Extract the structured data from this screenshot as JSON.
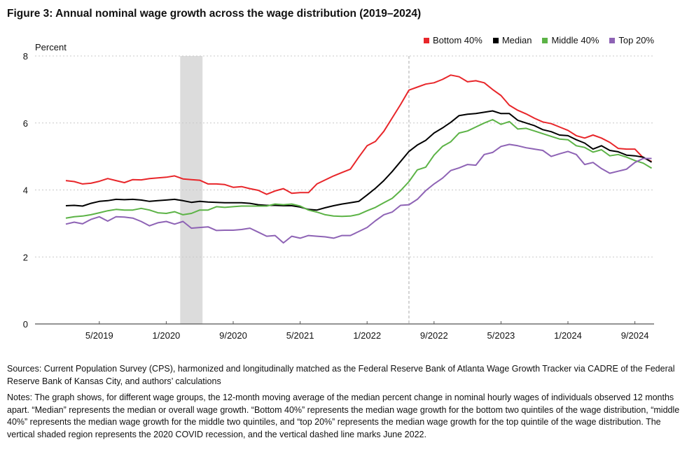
{
  "chart_data": {
    "type": "line",
    "title": "Figure 3: Annual nominal wage growth across the wage distribution (2019–2024)",
    "ylabel": "Percent",
    "xlabel": "",
    "ylim": [
      0,
      8
    ],
    "yticks": [
      0,
      2,
      4,
      6,
      8
    ],
    "grid": "horizontal dotted",
    "legend_position": "top-right",
    "x_start": "1/2019",
    "x_end": "11/2024",
    "x_frequency": "monthly",
    "xticks": [
      {
        "label": "5/2019",
        "index": 4
      },
      {
        "label": "1/2020",
        "index": 12
      },
      {
        "label": "9/2020",
        "index": 20
      },
      {
        "label": "5/2021",
        "index": 28
      },
      {
        "label": "1/2022",
        "index": 36
      },
      {
        "label": "9/2022",
        "index": 44
      },
      {
        "label": "5/2023",
        "index": 52
      },
      {
        "label": "1/2024",
        "index": 60
      },
      {
        "label": "9/2024",
        "index": 68
      }
    ],
    "shaded_region": {
      "label": "2020 COVID recession",
      "start_index": 14,
      "end_index": 16
    },
    "dashed_line": {
      "label": "June 2022",
      "index": 41
    },
    "series": [
      {
        "name": "Bottom 40%",
        "color": "#e8262a",
        "values": [
          4.28,
          4.25,
          4.18,
          4.2,
          4.26,
          4.34,
          4.28,
          4.22,
          4.31,
          4.3,
          4.34,
          4.36,
          4.38,
          4.42,
          4.33,
          4.31,
          4.29,
          4.18,
          4.18,
          4.16,
          4.08,
          4.1,
          4.04,
          3.99,
          3.87,
          3.97,
          4.04,
          3.9,
          3.92,
          3.92,
          4.18,
          4.3,
          4.42,
          4.52,
          4.62,
          4.98,
          5.32,
          5.45,
          5.75,
          6.15,
          6.55,
          6.98,
          7.07,
          7.16,
          7.2,
          7.3,
          7.43,
          7.38,
          7.23,
          7.26,
          7.2,
          7.0,
          6.82,
          6.53,
          6.38,
          6.27,
          6.14,
          6.03,
          5.98,
          5.88,
          5.78,
          5.62,
          5.55,
          5.64,
          5.55,
          5.42,
          5.24,
          5.22,
          5.22,
          4.96,
          4.85
        ]
      },
      {
        "name": "Median",
        "color": "#000000",
        "values": [
          3.53,
          3.54,
          3.52,
          3.6,
          3.66,
          3.68,
          3.72,
          3.71,
          3.72,
          3.7,
          3.66,
          3.68,
          3.7,
          3.72,
          3.68,
          3.63,
          3.66,
          3.64,
          3.63,
          3.62,
          3.62,
          3.62,
          3.6,
          3.56,
          3.54,
          3.54,
          3.53,
          3.53,
          3.49,
          3.42,
          3.4,
          3.47,
          3.53,
          3.58,
          3.62,
          3.66,
          3.85,
          4.05,
          4.28,
          4.55,
          4.85,
          5.15,
          5.34,
          5.48,
          5.7,
          5.85,
          6.02,
          6.22,
          6.26,
          6.28,
          6.32,
          6.36,
          6.28,
          6.28,
          6.08,
          6.0,
          5.92,
          5.8,
          5.74,
          5.64,
          5.62,
          5.5,
          5.4,
          5.22,
          5.32,
          5.18,
          5.14,
          5.04,
          5.02,
          4.98,
          4.83
        ]
      },
      {
        "name": "Middle 40%",
        "color": "#5cb346",
        "values": [
          3.16,
          3.2,
          3.22,
          3.26,
          3.32,
          3.38,
          3.42,
          3.4,
          3.4,
          3.45,
          3.4,
          3.32,
          3.3,
          3.35,
          3.26,
          3.3,
          3.4,
          3.4,
          3.5,
          3.48,
          3.5,
          3.52,
          3.52,
          3.52,
          3.52,
          3.58,
          3.56,
          3.58,
          3.52,
          3.4,
          3.34,
          3.26,
          3.22,
          3.21,
          3.22,
          3.27,
          3.38,
          3.48,
          3.62,
          3.75,
          3.98,
          4.25,
          4.6,
          4.68,
          5.04,
          5.3,
          5.44,
          5.7,
          5.76,
          5.88,
          6.0,
          6.1,
          5.96,
          6.04,
          5.82,
          5.84,
          5.76,
          5.68,
          5.6,
          5.52,
          5.5,
          5.32,
          5.27,
          5.13,
          5.2,
          5.02,
          5.06,
          4.98,
          4.88,
          4.8,
          4.65
        ]
      },
      {
        "name": "Top 20%",
        "color": "#8e63b5",
        "values": [
          2.98,
          3.04,
          2.99,
          3.12,
          3.2,
          3.07,
          3.2,
          3.19,
          3.16,
          3.06,
          2.93,
          3.02,
          3.06,
          2.98,
          3.06,
          2.86,
          2.88,
          2.9,
          2.79,
          2.8,
          2.8,
          2.82,
          2.86,
          2.74,
          2.62,
          2.64,
          2.42,
          2.62,
          2.56,
          2.64,
          2.62,
          2.6,
          2.56,
          2.64,
          2.64,
          2.76,
          2.88,
          3.08,
          3.26,
          3.34,
          3.54,
          3.56,
          3.72,
          3.98,
          4.18,
          4.35,
          4.58,
          4.66,
          4.76,
          4.74,
          5.06,
          5.12,
          5.3,
          5.36,
          5.32,
          5.26,
          5.22,
          5.18,
          5.0,
          5.08,
          5.15,
          5.06,
          4.76,
          4.82,
          4.64,
          4.5,
          4.56,
          4.62,
          4.82,
          4.94,
          4.94
        ]
      }
    ]
  },
  "footer": {
    "sources": "Sources: Current Population Survey (CPS), harmonized and longitudinally matched as the Federal Reserve Bank of Atlanta Wage Growth Tracker via CADRE of the Federal Reserve Bank of Kansas City, and authors’ calculations",
    "notes": "Notes: The graph shows, for different wage groups, the 12-month moving average of the median percent change in nominal hourly wages of individuals observed 12 months apart. “Median” represents the median or overall wage growth. “Bottom 40%” represents the median wage growth for the bottom two quintiles of the wage distribution, “middle 40%” represents the median wage growth for the middle two quintiles, and “top 20%” represents the median wage growth for the top quintile of the wage distribution. The vertical shaded region represents the 2020 COVID recession, and the vertical dashed line marks June 2022."
  }
}
